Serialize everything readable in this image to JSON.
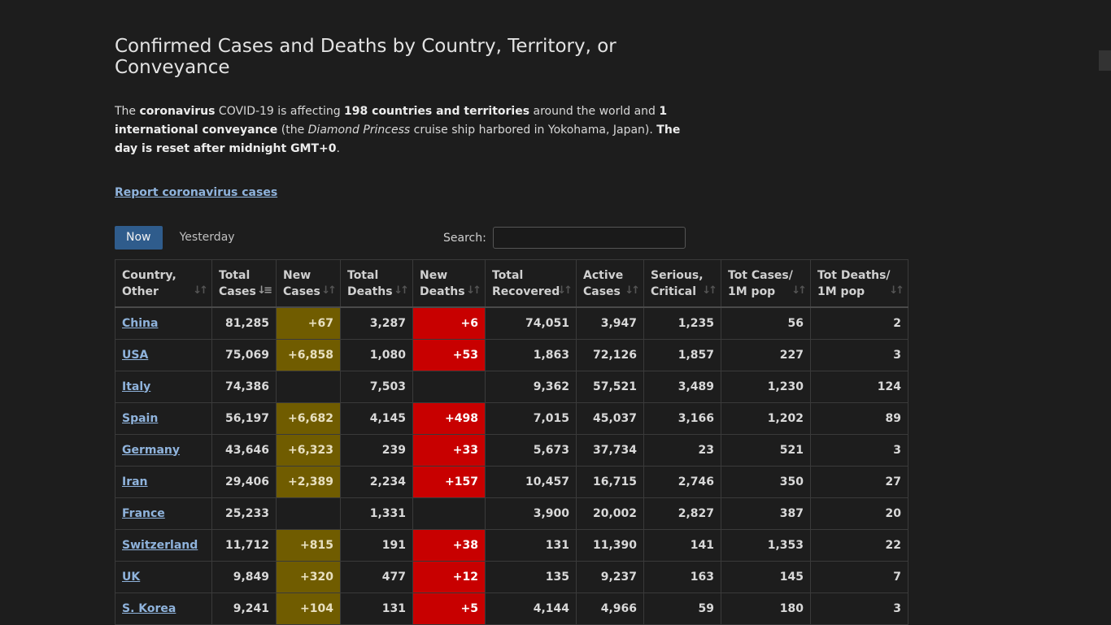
{
  "header": {
    "title": "Confirmed Cases and Deaths by Country, Territory, or Conveyance"
  },
  "intro": {
    "p1": "The ",
    "b1": "coronavirus",
    "p2": " COVID-19 is affecting ",
    "b2": "198 countries and territories",
    "p3": " around the world and ",
    "b3": "1 international conveyance",
    "p4": " (the ",
    "i1": "Diamond Princess",
    "p5": " cruise ship harbored in Yokohama, Japan). ",
    "b4": "The day is reset after midnight GMT+0",
    "p6": "."
  },
  "report_link": "Report coronavirus cases",
  "tabs": {
    "now": "Now",
    "yesterday": "Yesterday"
  },
  "search": {
    "label": "Search:",
    "value": ""
  },
  "table": {
    "headers": {
      "country": [
        "Country,",
        "Other"
      ],
      "total_cases": [
        "Total",
        "Cases"
      ],
      "new_cases": [
        "New",
        "Cases"
      ],
      "total_deaths": [
        "Total",
        "Deaths"
      ],
      "new_deaths": [
        "New",
        "Deaths"
      ],
      "total_recovered": [
        "Total",
        "Recovered"
      ],
      "active_cases": [
        "Active",
        "Cases"
      ],
      "serious_critical": [
        "Serious,",
        "Critical"
      ],
      "tot_cases_1m": [
        "Tot Cases/",
        "1M pop"
      ],
      "tot_deaths_1m": [
        "Tot Deaths/",
        "1M pop"
      ]
    },
    "rows": [
      {
        "country": "China",
        "total_cases": "81,285",
        "new_cases": "+67",
        "total_deaths": "3,287",
        "new_deaths": "+6",
        "total_recovered": "74,051",
        "active_cases": "3,947",
        "serious_critical": "1,235",
        "tot_cases_1m": "56",
        "tot_deaths_1m": "2"
      },
      {
        "country": "USA",
        "total_cases": "75,069",
        "new_cases": "+6,858",
        "total_deaths": "1,080",
        "new_deaths": "+53",
        "total_recovered": "1,863",
        "active_cases": "72,126",
        "serious_critical": "1,857",
        "tot_cases_1m": "227",
        "tot_deaths_1m": "3"
      },
      {
        "country": "Italy",
        "total_cases": "74,386",
        "new_cases": "",
        "total_deaths": "7,503",
        "new_deaths": "",
        "total_recovered": "9,362",
        "active_cases": "57,521",
        "serious_critical": "3,489",
        "tot_cases_1m": "1,230",
        "tot_deaths_1m": "124"
      },
      {
        "country": "Spain",
        "total_cases": "56,197",
        "new_cases": "+6,682",
        "total_deaths": "4,145",
        "new_deaths": "+498",
        "total_recovered": "7,015",
        "active_cases": "45,037",
        "serious_critical": "3,166",
        "tot_cases_1m": "1,202",
        "tot_deaths_1m": "89"
      },
      {
        "country": "Germany",
        "total_cases": "43,646",
        "new_cases": "+6,323",
        "total_deaths": "239",
        "new_deaths": "+33",
        "total_recovered": "5,673",
        "active_cases": "37,734",
        "serious_critical": "23",
        "tot_cases_1m": "521",
        "tot_deaths_1m": "3"
      },
      {
        "country": "Iran",
        "total_cases": "29,406",
        "new_cases": "+2,389",
        "total_deaths": "2,234",
        "new_deaths": "+157",
        "total_recovered": "10,457",
        "active_cases": "16,715",
        "serious_critical": "2,746",
        "tot_cases_1m": "350",
        "tot_deaths_1m": "27"
      },
      {
        "country": "France",
        "total_cases": "25,233",
        "new_cases": "",
        "total_deaths": "1,331",
        "new_deaths": "",
        "total_recovered": "3,900",
        "active_cases": "20,002",
        "serious_critical": "2,827",
        "tot_cases_1m": "387",
        "tot_deaths_1m": "20"
      },
      {
        "country": "Switzerland",
        "total_cases": "11,712",
        "new_cases": "+815",
        "total_deaths": "191",
        "new_deaths": "+38",
        "total_recovered": "131",
        "active_cases": "11,390",
        "serious_critical": "141",
        "tot_cases_1m": "1,353",
        "tot_deaths_1m": "22"
      },
      {
        "country": "UK",
        "total_cases": "9,849",
        "new_cases": "+320",
        "total_deaths": "477",
        "new_deaths": "+12",
        "total_recovered": "135",
        "active_cases": "9,237",
        "serious_critical": "163",
        "tot_cases_1m": "145",
        "tot_deaths_1m": "7"
      },
      {
        "country": "S. Korea",
        "total_cases": "9,241",
        "new_cases": "+104",
        "total_deaths": "131",
        "new_deaths": "+5",
        "total_recovered": "4,144",
        "active_cases": "4,966",
        "serious_critical": "59",
        "tot_cases_1m": "180",
        "tot_deaths_1m": "3"
      }
    ]
  },
  "icons": {
    "sort": "sort-both-icon",
    "sort_active": "sort-descending-icon"
  },
  "colors": {
    "new_cases_bg": "#705c00",
    "new_deaths_bg": "#c80000",
    "link": "#8fb3dc",
    "active_tab": "#2f5c8c"
  }
}
